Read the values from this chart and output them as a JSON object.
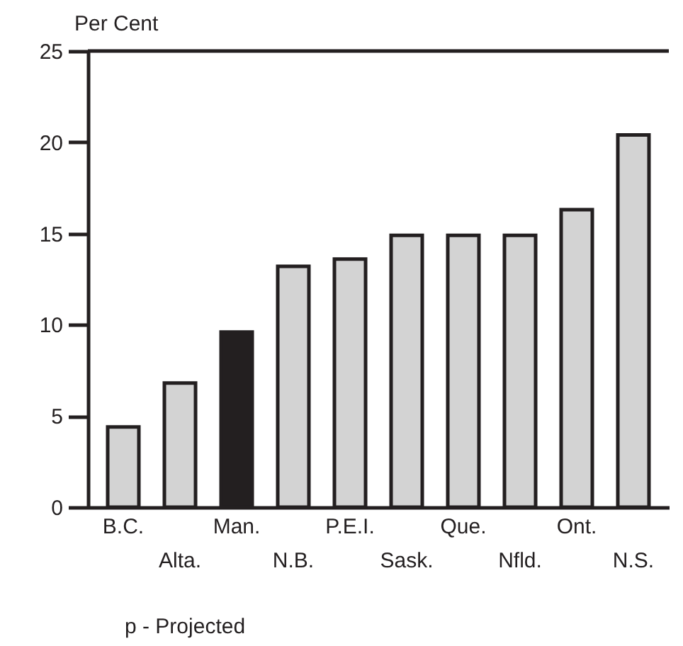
{
  "chart_data": {
    "type": "bar",
    "ylabel": "Per Cent",
    "categories": [
      "B.C.",
      "Alta.",
      "Man.",
      "N.B.",
      "P.E.I.",
      "Sask.",
      "Que.",
      "Nfld.",
      "Ont.",
      "N.S."
    ],
    "values": [
      4.4,
      6.8,
      9.6,
      13.2,
      13.6,
      14.9,
      14.9,
      14.9,
      16.3,
      20.4
    ],
    "colors": [
      "#d3d3d3",
      "#d3d3d3",
      "#231f20",
      "#d3d3d3",
      "#d3d3d3",
      "#d3d3d3",
      "#d3d3d3",
      "#d3d3d3",
      "#d3d3d3",
      "#d3d3d3"
    ],
    "ylim": [
      0,
      25
    ],
    "yticks": [
      0,
      5,
      10,
      15,
      20,
      25
    ],
    "grid": false,
    "annotations": [
      "p - Projected"
    ]
  }
}
